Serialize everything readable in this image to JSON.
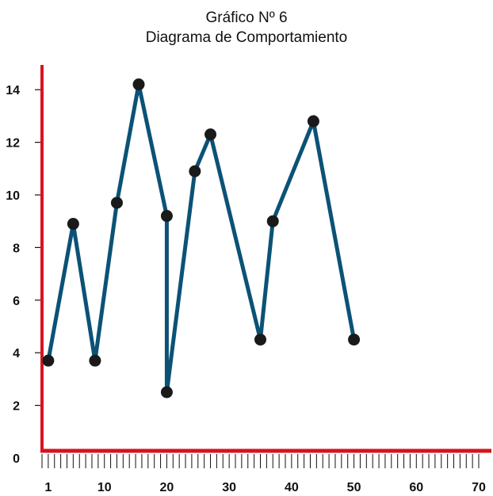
{
  "chart_data": {
    "type": "line",
    "title": "Gráfico Nº 6",
    "subtitle": "Diagrama de Comportamiento",
    "xlabel": "",
    "ylabel": "",
    "xlim": [
      0,
      70
    ],
    "ylim": [
      0,
      15
    ],
    "x_ticks": [
      1,
      10,
      20,
      30,
      40,
      50,
      60,
      70
    ],
    "y_ticks": [
      0,
      2,
      4,
      6,
      8,
      10,
      12,
      14
    ],
    "grid": false,
    "series": [
      {
        "x": [
          1,
          5,
          8.5,
          12,
          15.5,
          20,
          20,
          24.5,
          27,
          35,
          37,
          43.5,
          50
        ],
        "y": [
          3.7,
          8.9,
          3.7,
          9.7,
          14.2,
          9.2,
          2.5,
          10.9,
          12.3,
          4.5,
          9.0,
          12.8,
          4.5
        ]
      }
    ],
    "colors": {
      "line": "#0b5276",
      "marker": "#1a1a1a",
      "axis": "#d7141e",
      "minor_ticks": "#111111"
    }
  }
}
